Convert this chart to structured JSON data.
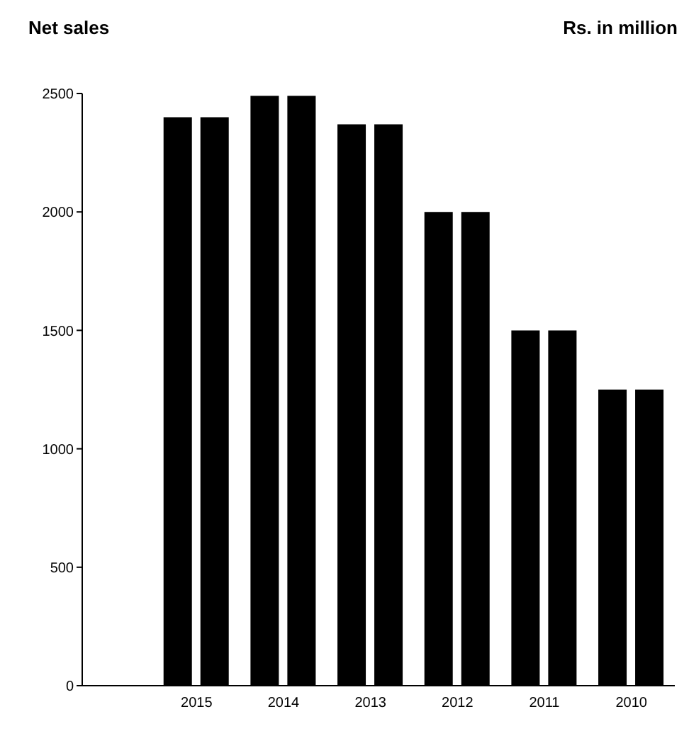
{
  "chart_data": {
    "type": "bar",
    "title": "Net sales",
    "annotations": [
      "Rs. in million"
    ],
    "categories": [
      "2015",
      "2014",
      "2013",
      "2012",
      "2011",
      "2010"
    ],
    "series": [
      {
        "color": "#000000",
        "values": [
          2400,
          2490,
          2370,
          2000,
          1500,
          1250
        ]
      },
      {
        "color": "#000000",
        "values": [
          2400,
          2490,
          2370,
          2000,
          1500,
          1250
        ]
      }
    ],
    "ylim": [
      0,
      2500
    ],
    "yticks": [
      0,
      500,
      1000,
      1500,
      2000,
      2500
    ],
    "grid": false,
    "legend": false
  }
}
